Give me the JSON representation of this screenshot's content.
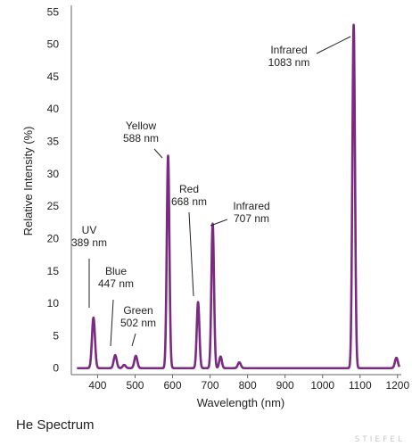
{
  "caption": "He Spectrum",
  "watermark": "STIEFEL",
  "chart_data": {
    "type": "line",
    "title": "",
    "xlabel": "Wavelength (nm)",
    "ylabel": "Relative Intensity (%)",
    "xlim": [
      330,
      1210
    ],
    "ylim": [
      -1,
      56
    ],
    "x_ticks": [
      400,
      500,
      600,
      700,
      800,
      900,
      1000,
      1100,
      1200
    ],
    "y_ticks": [
      0,
      5,
      10,
      15,
      20,
      25,
      30,
      35,
      40,
      45,
      50,
      55
    ],
    "grid": false,
    "line_color": "#7b2a82",
    "baseline": 0,
    "peaks": [
      {
        "x": 389,
        "y": 7.8,
        "width": 4
      },
      {
        "x": 447,
        "y": 2.0,
        "width": 4
      },
      {
        "x": 471,
        "y": 0.5,
        "width": 4
      },
      {
        "x": 502,
        "y": 1.9,
        "width": 4
      },
      {
        "x": 588,
        "y": 32.8,
        "width": 3.5
      },
      {
        "x": 668,
        "y": 10.2,
        "width": 3.5
      },
      {
        "x": 707,
        "y": 22.3,
        "width": 3.5
      },
      {
        "x": 728,
        "y": 1.8,
        "width": 3.5
      },
      {
        "x": 778,
        "y": 0.9,
        "width": 4
      },
      {
        "x": 1083,
        "y": 53.0,
        "width": 3.5
      },
      {
        "x": 1197,
        "y": 1.6,
        "width": 4
      }
    ],
    "annotations": [
      {
        "lines": [
          "UV",
          "389 nm"
        ],
        "x": 389,
        "y": 7.8
      },
      {
        "lines": [
          "Blue",
          "447 nm"
        ],
        "x": 447,
        "y": 2.0
      },
      {
        "lines": [
          "Green",
          "502 nm"
        ],
        "x": 502,
        "y": 1.9
      },
      {
        "lines": [
          "Yellow",
          "588 nm"
        ],
        "x": 588,
        "y": 32.8
      },
      {
        "lines": [
          "Red",
          "668 nm"
        ],
        "x": 668,
        "y": 10.2
      },
      {
        "lines": [
          "Infrared",
          "707 nm"
        ],
        "x": 707,
        "y": 22.3
      },
      {
        "lines": [
          "Infrared",
          "1083 nm"
        ],
        "x": 1083,
        "y": 53.0
      }
    ]
  }
}
